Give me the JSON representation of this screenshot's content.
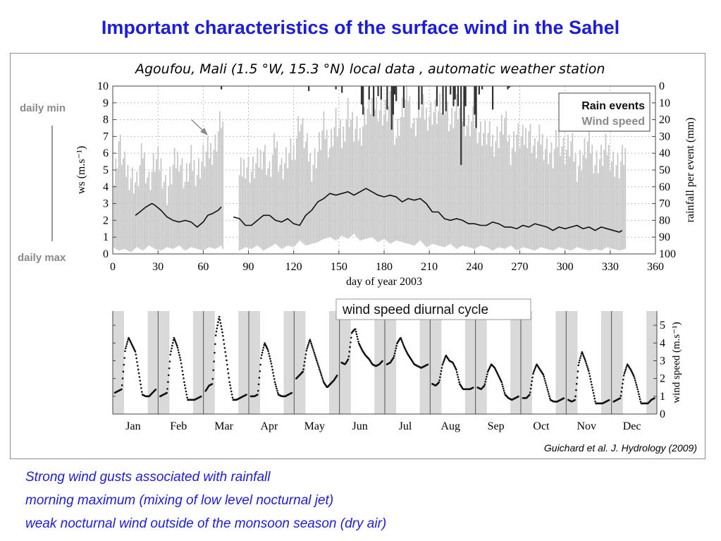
{
  "slide": {
    "title": "Important characteristics of the surface wind in the Sahel",
    "subtitle": "Agoufou, Mali (1.5 °W, 15.3 °N)  local data , automatic weather station",
    "side_label_top": "daily min",
    "side_label_bottom": "daily max",
    "citation": "Guichard et al. J. Hydrology (2009)",
    "bullets": [
      "Strong wind gusts associated with rainfall",
      "morning maximum (mixing of low level nocturnal  jet)",
      "weak nocturnal wind outside of the monsoon season (dry air)"
    ]
  },
  "colors": {
    "title": "#1c1cdc",
    "wind_speed_gray": "#c8c8c8",
    "rain_bars": "#333333",
    "night_band": "#d9d9d9",
    "side_label": "#8a8a8a"
  },
  "chart_data": [
    {
      "type": "line",
      "xlabel": "day of year 2003",
      "ylabel": "ws (m.s⁻¹)",
      "ylabel_right": "rainfall per event (mm)",
      "xlim": [
        0,
        360
      ],
      "ylim": [
        0,
        10
      ],
      "ylim_right": [
        100,
        0
      ],
      "x_ticks": [
        "0",
        "30",
        "60",
        "90",
        "120",
        "150",
        "180",
        "210",
        "240",
        "270",
        "300",
        "330",
        "360"
      ],
      "y_ticks": [
        "0",
        "1",
        "2",
        "3",
        "4",
        "5",
        "6",
        "7",
        "8",
        "9",
        "10"
      ],
      "y_ticks_right": [
        "0",
        "10",
        "20",
        "30",
        "40",
        "50",
        "60",
        "70",
        "80",
        "90",
        "100"
      ],
      "legend": [
        "Rain events",
        "Wind speed"
      ],
      "legend_position": "top-right",
      "grid": true,
      "series": [
        {
          "name": "Wind speed",
          "kind": "daily-range-envelope",
          "x": [
            0,
            4,
            8,
            12,
            16,
            20,
            24,
            28,
            32,
            36,
            40,
            44,
            48,
            52,
            56,
            60,
            64,
            68,
            72,
            73,
            84,
            88,
            92,
            96,
            100,
            104,
            108,
            112,
            116,
            120,
            124,
            128,
            132,
            136,
            140,
            144,
            148,
            152,
            156,
            160,
            164,
            168,
            172,
            176,
            180,
            184,
            188,
            192,
            196,
            200,
            204,
            208,
            212,
            216,
            220,
            224,
            228,
            232,
            236,
            240,
            244,
            248,
            252,
            256,
            260,
            264,
            268,
            272,
            276,
            280,
            284,
            288,
            292,
            296,
            300,
            304,
            308,
            312,
            316,
            320,
            324,
            328,
            332,
            336,
            340
          ],
          "max": [
            3.6,
            6.8,
            5.2,
            4.8,
            4.2,
            6.2,
            4.4,
            5.6,
            5.4,
            3.8,
            5.2,
            6.0,
            4.4,
            5.6,
            5.0,
            5.8,
            6.2,
            6.6,
            8.2,
            7.8,
            4.6,
            5.6,
            5.0,
            5.4,
            6.4,
            4.8,
            6.8,
            5.2,
            5.8,
            6.2,
            8.2,
            6.6,
            5.4,
            6.2,
            7.6,
            6.6,
            8.0,
            6.8,
            8.8,
            7.4,
            7.2,
            8.6,
            9.2,
            9.0,
            8.4,
            8.8,
            7.2,
            8.6,
            9.6,
            7.6,
            8.8,
            8.4,
            8.6,
            8.4,
            9.4,
            7.8,
            8.6,
            8.2,
            7.6,
            8.0,
            7.4,
            7.2,
            6.8,
            7.2,
            8.0,
            6.4,
            7.2,
            6.8,
            7.6,
            6.2,
            7.0,
            6.4,
            5.8,
            7.2,
            6.2,
            6.6,
            5.4,
            6.0,
            6.8,
            5.6,
            5.8,
            6.4,
            5.6,
            5.2,
            6.0
          ],
          "min": [
            0.4,
            0.2,
            0.3,
            0.1,
            0.4,
            0.2,
            0.5,
            0.3,
            0.2,
            0.4,
            0.3,
            0.5,
            0.2,
            0.4,
            0.3,
            0.2,
            0.4,
            0.3,
            0.5,
            0.3,
            0.2,
            0.4,
            0.3,
            0.5,
            0.2,
            0.4,
            0.6,
            0.3,
            0.5,
            0.4,
            0.8,
            0.5,
            0.6,
            0.7,
            0.9,
            1.0,
            0.8,
            1.1,
            0.9,
            1.2,
            0.8,
            0.9,
            1.0,
            0.7,
            0.9,
            0.6,
            0.8,
            0.7,
            0.6,
            0.5,
            0.8,
            0.4,
            0.6,
            0.5,
            0.4,
            0.6,
            0.3,
            0.5,
            0.4,
            0.3,
            0.5,
            0.4,
            0.2,
            0.4,
            0.3,
            0.5,
            0.2,
            0.4,
            0.3,
            0.2,
            0.4,
            0.3,
            0.2,
            0.4,
            0.3,
            0.2,
            0.4,
            0.3,
            0.2,
            0.3,
            0.2,
            0.4,
            0.3,
            0.2,
            0.3
          ]
        },
        {
          "name": "",
          "kind": "running-mean",
          "x": [
            15,
            18,
            22,
            26,
            28,
            32,
            36,
            40,
            44,
            48,
            52,
            56,
            60,
            63,
            66,
            70,
            72,
            80,
            84,
            88,
            92,
            96,
            100,
            104,
            108,
            112,
            116,
            120,
            124,
            128,
            132,
            136,
            140,
            144,
            148,
            152,
            156,
            160,
            164,
            168,
            172,
            176,
            180,
            184,
            188,
            192,
            196,
            200,
            204,
            208,
            212,
            216,
            220,
            224,
            228,
            232,
            236,
            240,
            244,
            248,
            252,
            256,
            260,
            264,
            268,
            272,
            276,
            280,
            284,
            288,
            292,
            296,
            300,
            304,
            308,
            312,
            316,
            320,
            324,
            328,
            332,
            336,
            338
          ],
          "y": [
            2.3,
            2.5,
            2.8,
            3.0,
            2.9,
            2.6,
            2.2,
            2.0,
            1.9,
            2.0,
            1.9,
            1.6,
            1.9,
            2.3,
            2.4,
            2.6,
            2.8,
            2.2,
            2.1,
            1.7,
            1.7,
            2.0,
            2.3,
            2.3,
            2.0,
            1.9,
            2.1,
            1.8,
            1.7,
            2.3,
            2.6,
            3.1,
            3.3,
            3.6,
            3.5,
            3.6,
            3.7,
            3.5,
            3.7,
            3.9,
            3.7,
            3.5,
            3.4,
            3.5,
            3.4,
            3.1,
            3.3,
            3.2,
            3.3,
            3.0,
            2.5,
            2.5,
            2.1,
            2.0,
            2.1,
            2.0,
            1.8,
            1.8,
            1.7,
            1.7,
            1.9,
            1.8,
            1.6,
            1.6,
            1.5,
            1.7,
            1.6,
            1.8,
            1.7,
            1.6,
            1.4,
            1.6,
            1.5,
            1.6,
            1.7,
            1.5,
            1.6,
            1.4,
            1.6,
            1.5,
            1.4,
            1.3,
            1.4
          ]
        },
        {
          "name": "Rain events",
          "kind": "bars-from-top",
          "axis": "right",
          "x": [
            72,
            130,
            148,
            152,
            165,
            166,
            170,
            173,
            176,
            178,
            182,
            185,
            186,
            187,
            188,
            193,
            203,
            205,
            215,
            219,
            221,
            224,
            226,
            227,
            229,
            231,
            233,
            234,
            240,
            241,
            243,
            245,
            252,
            262,
            263
          ],
          "mm": [
            2,
            3,
            2,
            4,
            11,
            17,
            8,
            18,
            6,
            8,
            14,
            26,
            17,
            5,
            9,
            13,
            14,
            11,
            12,
            17,
            15,
            5,
            12,
            8,
            12,
            47,
            24,
            12,
            17,
            25,
            5,
            2,
            14,
            2,
            1
          ]
        }
      ]
    },
    {
      "type": "line",
      "title": "wind speed diurnal cycle",
      "ylabel": "wind speed (m.s⁻¹)",
      "ylim": [
        0,
        5.8
      ],
      "y_ticks": [
        "0",
        "1",
        "2",
        "3",
        "4",
        "5"
      ],
      "x_ticks": [
        "Jan",
        "Feb",
        "Mar",
        "Apr",
        "May",
        "Jun",
        "Jul",
        "Aug",
        "Sep",
        "Oct",
        "Nov",
        "Dec"
      ],
      "hours": [
        0,
        2,
        4,
        6,
        8,
        10,
        12,
        14,
        16,
        18,
        20,
        22,
        24
      ],
      "series": [
        {
          "name": "Jan",
          "values": [
            1.2,
            1.3,
            1.4,
            3.6,
            4.3,
            3.9,
            3.5,
            2.3,
            1.1,
            1.0,
            1.0,
            1.2,
            1.4
          ]
        },
        {
          "name": "Feb",
          "values": [
            1.0,
            1.1,
            1.2,
            3.4,
            4.3,
            3.8,
            3.0,
            1.8,
            0.8,
            0.8,
            0.8,
            0.9,
            1.0
          ]
        },
        {
          "name": "Mar",
          "values": [
            1.3,
            1.6,
            1.7,
            4.5,
            5.5,
            4.5,
            3.2,
            1.8,
            0.8,
            0.8,
            0.9,
            1.0,
            1.1
          ]
        },
        {
          "name": "Apr",
          "values": [
            1.0,
            1.0,
            1.1,
            3.2,
            4.0,
            3.6,
            2.8,
            1.8,
            1.1,
            1.0,
            1.0,
            1.1,
            1.2
          ]
        },
        {
          "name": "May",
          "values": [
            2.0,
            2.2,
            2.4,
            3.6,
            4.2,
            3.6,
            3.0,
            2.4,
            1.8,
            1.5,
            1.7,
            1.9,
            2.2
          ]
        },
        {
          "name": "Jun",
          "values": [
            2.9,
            2.8,
            3.1,
            4.6,
            4.8,
            4.0,
            3.6,
            3.3,
            3.1,
            2.8,
            2.7,
            2.8,
            3.0
          ]
        },
        {
          "name": "Jul",
          "values": [
            2.8,
            2.9,
            3.2,
            4.0,
            4.3,
            3.8,
            3.4,
            3.1,
            2.8,
            2.7,
            2.6,
            2.7,
            2.8
          ]
        },
        {
          "name": "Aug",
          "values": [
            1.7,
            1.6,
            1.8,
            2.8,
            3.3,
            3.0,
            2.9,
            2.5,
            1.7,
            1.4,
            1.4,
            1.4,
            1.5
          ]
        },
        {
          "name": "Sep",
          "values": [
            1.5,
            1.4,
            1.6,
            2.4,
            2.8,
            2.6,
            2.2,
            1.8,
            1.1,
            0.9,
            0.8,
            0.9,
            1.0
          ]
        },
        {
          "name": "Oct",
          "values": [
            0.9,
            0.9,
            1.1,
            2.3,
            2.8,
            2.5,
            2.2,
            1.5,
            0.8,
            0.7,
            0.7,
            0.8,
            0.9
          ]
        },
        {
          "name": "Nov",
          "values": [
            0.8,
            0.7,
            0.8,
            2.8,
            3.5,
            3.0,
            2.4,
            1.5,
            0.6,
            0.6,
            0.6,
            0.7,
            0.8
          ]
        },
        {
          "name": "Dec",
          "values": [
            0.7,
            0.8,
            0.9,
            2.2,
            2.8,
            2.5,
            2.1,
            1.4,
            0.6,
            0.6,
            0.6,
            0.8,
            0.9
          ]
        }
      ]
    }
  ]
}
